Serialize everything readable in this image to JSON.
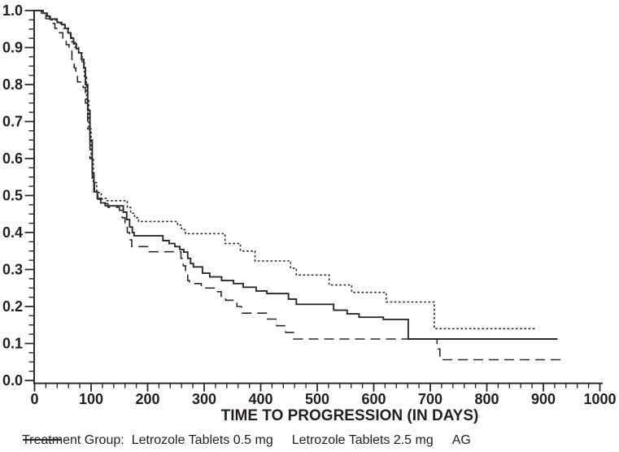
{
  "colors": {
    "line": "#2b2b2b",
    "text": "#231f20",
    "background": "#ffffff"
  },
  "legend": {
    "title": "Treatment Group:",
    "items": [
      {
        "id": "letrozole-0-5mg",
        "label": "Letrozole Tablets 0.5 mg",
        "line": "solid"
      },
      {
        "id": "letrozole-2-5mg",
        "label": "Letrozole Tablets 2.5 mg",
        "line": "dotted"
      },
      {
        "id": "ag",
        "label": "AG",
        "line": "dashed"
      }
    ]
  },
  "chart_data": {
    "type": "line",
    "subtype": "kaplan-meier-step",
    "title": "",
    "xlabel": "TIME TO PROGRESSION (IN DAYS)",
    "ylabel": "",
    "xlim": [
      0,
      1000
    ],
    "ylim": [
      0.0,
      1.0
    ],
    "grid": false,
    "legend_position": "bottom",
    "x_ticks": [
      {
        "v": 0,
        "label": "0"
      },
      {
        "v": 100,
        "label": "100"
      },
      {
        "v": 200,
        "label": "200"
      },
      {
        "v": 300,
        "label": "300"
      },
      {
        "v": 400,
        "label": "400"
      },
      {
        "v": 500,
        "label": "500"
      },
      {
        "v": 600,
        "label": "600"
      },
      {
        "v": 700,
        "label": "700"
      },
      {
        "v": 800,
        "label": "800"
      },
      {
        "v": 900,
        "label": "900"
      },
      {
        "v": 1000,
        "label": "1000"
      }
    ],
    "x_minor_step": 20,
    "y_ticks": [
      {
        "v": 1.0,
        "label": "1.0"
      },
      {
        "v": 0.9,
        "label": "0.9"
      },
      {
        "v": 0.8,
        "label": "0.8"
      },
      {
        "v": 0.7,
        "label": "0.7"
      },
      {
        "v": 0.6,
        "label": "0.6"
      },
      {
        "v": 0.5,
        "label": "0.5"
      },
      {
        "v": 0.4,
        "label": "0.4"
      },
      {
        "v": 0.3,
        "label": "0.3"
      },
      {
        "v": 0.2,
        "label": "0.2"
      },
      {
        "v": 0.1,
        "label": "0.1"
      },
      {
        "v": 0.0,
        "label": "0.0"
      }
    ],
    "y_minor_step": 0.025,
    "series": [
      {
        "id": "letrozole-0-5mg",
        "name": "Letrozole Tablets 0.5 mg",
        "line": "solid",
        "points": [
          [
            0,
            1.0
          ],
          [
            15,
            0.993
          ],
          [
            22,
            0.985
          ],
          [
            27,
            0.977
          ],
          [
            40,
            0.968
          ],
          [
            48,
            0.962
          ],
          [
            54,
            0.952
          ],
          [
            59,
            0.94
          ],
          [
            64,
            0.925
          ],
          [
            69,
            0.91
          ],
          [
            74,
            0.897
          ],
          [
            78,
            0.886
          ],
          [
            83,
            0.868
          ],
          [
            87,
            0.845
          ],
          [
            90,
            0.8
          ],
          [
            94,
            0.73
          ],
          [
            98,
            0.65
          ],
          [
            102,
            0.56
          ],
          [
            105,
            0.51
          ],
          [
            111,
            0.492
          ],
          [
            117,
            0.48
          ],
          [
            125,
            0.472
          ],
          [
            157,
            0.455
          ],
          [
            163,
            0.435
          ],
          [
            168,
            0.415
          ],
          [
            173,
            0.4
          ],
          [
            176,
            0.391
          ],
          [
            227,
            0.378
          ],
          [
            238,
            0.37
          ],
          [
            248,
            0.362
          ],
          [
            257,
            0.354
          ],
          [
            264,
            0.347
          ],
          [
            271,
            0.33
          ],
          [
            276,
            0.316
          ],
          [
            281,
            0.307
          ],
          [
            297,
            0.29
          ],
          [
            310,
            0.28
          ],
          [
            331,
            0.27
          ],
          [
            352,
            0.262
          ],
          [
            369,
            0.252
          ],
          [
            392,
            0.242
          ],
          [
            411,
            0.235
          ],
          [
            449,
            0.22
          ],
          [
            463,
            0.206
          ],
          [
            529,
            0.19
          ],
          [
            553,
            0.18
          ],
          [
            574,
            0.171
          ],
          [
            617,
            0.165
          ],
          [
            661,
            0.112
          ],
          [
            925,
            0.112
          ]
        ]
      },
      {
        "id": "letrozole-2-5mg",
        "name": "Letrozole Tablets 2.5 mg",
        "line": "dotted",
        "points": [
          [
            0,
            1.0
          ],
          [
            15,
            0.992
          ],
          [
            23,
            0.982
          ],
          [
            28,
            0.975
          ],
          [
            41,
            0.965
          ],
          [
            52,
            0.952
          ],
          [
            60,
            0.935
          ],
          [
            66,
            0.915
          ],
          [
            72,
            0.9
          ],
          [
            78,
            0.885
          ],
          [
            84,
            0.862
          ],
          [
            88,
            0.82
          ],
          [
            92,
            0.76
          ],
          [
            96,
            0.68
          ],
          [
            100,
            0.6
          ],
          [
            104,
            0.535
          ],
          [
            110,
            0.508
          ],
          [
            118,
            0.492
          ],
          [
            128,
            0.486
          ],
          [
            164,
            0.468
          ],
          [
            170,
            0.452
          ],
          [
            177,
            0.44
          ],
          [
            184,
            0.43
          ],
          [
            253,
            0.42
          ],
          [
            260,
            0.408
          ],
          [
            267,
            0.397
          ],
          [
            337,
            0.37
          ],
          [
            364,
            0.35
          ],
          [
            390,
            0.323
          ],
          [
            453,
            0.303
          ],
          [
            463,
            0.285
          ],
          [
            521,
            0.258
          ],
          [
            561,
            0.238
          ],
          [
            622,
            0.212
          ],
          [
            707,
            0.14
          ],
          [
            885,
            0.14
          ]
        ]
      },
      {
        "id": "ag",
        "name": "AG",
        "line": "dashed",
        "points": [
          [
            0,
            1.0
          ],
          [
            12,
            0.992
          ],
          [
            20,
            0.978
          ],
          [
            28,
            0.965
          ],
          [
            36,
            0.952
          ],
          [
            44,
            0.94
          ],
          [
            50,
            0.925
          ],
          [
            56,
            0.908
          ],
          [
            61,
            0.89
          ],
          [
            66,
            0.868
          ],
          [
            70,
            0.845
          ],
          [
            73,
            0.822
          ],
          [
            76,
            0.807
          ],
          [
            86,
            0.792
          ],
          [
            90,
            0.75
          ],
          [
            94,
            0.68
          ],
          [
            98,
            0.6
          ],
          [
            102,
            0.54
          ],
          [
            106,
            0.506
          ],
          [
            112,
            0.49
          ],
          [
            120,
            0.478
          ],
          [
            130,
            0.468
          ],
          [
            150,
            0.46
          ],
          [
            155,
            0.44
          ],
          [
            160,
            0.42
          ],
          [
            164,
            0.4
          ],
          [
            168,
            0.38
          ],
          [
            172,
            0.362
          ],
          [
            200,
            0.348
          ],
          [
            259,
            0.33
          ],
          [
            263,
            0.31
          ],
          [
            267,
            0.29
          ],
          [
            271,
            0.27
          ],
          [
            274,
            0.262
          ],
          [
            295,
            0.25
          ],
          [
            322,
            0.24
          ],
          [
            330,
            0.228
          ],
          [
            338,
            0.217
          ],
          [
            358,
            0.2
          ],
          [
            366,
            0.182
          ],
          [
            412,
            0.166
          ],
          [
            428,
            0.148
          ],
          [
            444,
            0.13
          ],
          [
            458,
            0.112
          ],
          [
            712,
            0.085
          ],
          [
            717,
            0.056
          ],
          [
            936,
            0.056
          ]
        ]
      }
    ]
  }
}
